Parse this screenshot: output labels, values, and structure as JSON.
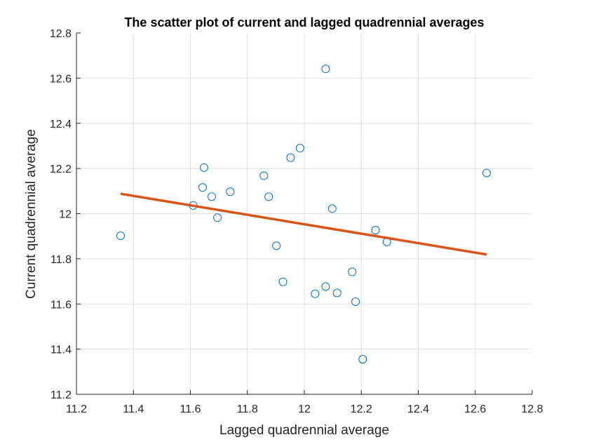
{
  "chart_data": {
    "type": "scatter",
    "title": "The scatter plot of current and lagged quadrennial averages",
    "xlabel": "Lagged quadrennial average",
    "ylabel": "Current quadrennial average",
    "xlim": [
      11.2,
      12.8
    ],
    "ylim": [
      11.2,
      12.8
    ],
    "xticks": [
      11.2,
      11.4,
      11.6,
      11.8,
      12,
      12.2,
      12.4,
      12.6,
      12.8
    ],
    "yticks": [
      11.2,
      11.4,
      11.6,
      11.8,
      12,
      12.2,
      12.4,
      12.6,
      12.8
    ],
    "xtick_labels": [
      "11.2",
      "11.4",
      "11.6",
      "11.8",
      "12",
      "12.2",
      "12.4",
      "12.6",
      "12.8"
    ],
    "ytick_labels": [
      "11.2",
      "11.4",
      "11.6",
      "11.8",
      "12",
      "12.2",
      "12.4",
      "12.6",
      "12.8"
    ],
    "grid": true,
    "series": [
      {
        "type": "scatter",
        "marker": "circle-open",
        "color": "#0072BD",
        "points": [
          [
            11.355,
            11.902
          ],
          [
            11.61,
            12.036
          ],
          [
            11.643,
            12.116
          ],
          [
            11.648,
            12.204
          ],
          [
            11.675,
            12.075
          ],
          [
            11.695,
            11.982
          ],
          [
            11.74,
            12.097
          ],
          [
            11.858,
            12.168
          ],
          [
            11.875,
            12.075
          ],
          [
            11.902,
            11.858
          ],
          [
            11.925,
            11.698
          ],
          [
            11.952,
            12.248
          ],
          [
            11.985,
            12.29
          ],
          [
            12.038,
            11.645
          ],
          [
            12.075,
            11.677
          ],
          [
            12.075,
            12.641
          ],
          [
            12.098,
            12.022
          ],
          [
            12.115,
            11.649
          ],
          [
            12.168,
            11.742
          ],
          [
            12.18,
            11.61
          ],
          [
            12.205,
            11.355
          ],
          [
            12.25,
            11.927
          ],
          [
            12.29,
            11.875
          ],
          [
            12.64,
            12.18
          ]
        ]
      },
      {
        "type": "line",
        "color": "#D95319",
        "points": [
          [
            11.355,
            12.088
          ],
          [
            12.64,
            11.819
          ]
        ]
      }
    ]
  }
}
